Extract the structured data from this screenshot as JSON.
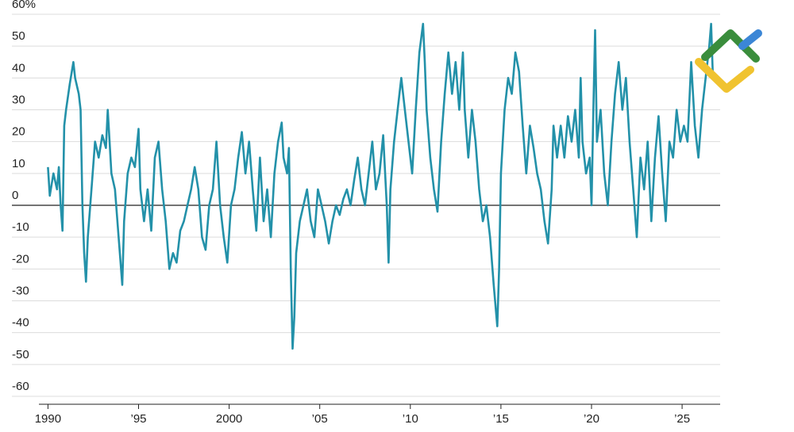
{
  "chart_data": {
    "type": "line",
    "x": [
      1990.0,
      1990.1,
      1990.3,
      1990.5,
      1990.6,
      1990.7,
      1990.8,
      1990.9,
      1991.0,
      1991.2,
      1991.4,
      1991.5,
      1991.7,
      1991.8,
      1991.9,
      1992.0,
      1992.1,
      1992.2,
      1992.4,
      1992.6,
      1992.8,
      1993.0,
      1993.2,
      1993.3,
      1993.5,
      1993.7,
      1993.9,
      1994.1,
      1994.2,
      1994.4,
      1994.6,
      1994.8,
      1995.0,
      1995.1,
      1995.3,
      1995.5,
      1995.7,
      1995.9,
      1996.1,
      1996.3,
      1996.5,
      1996.7,
      1996.9,
      1997.1,
      1997.3,
      1997.5,
      1997.7,
      1997.9,
      1998.1,
      1998.3,
      1998.5,
      1998.7,
      1998.9,
      1999.1,
      1999.3,
      1999.5,
      1999.7,
      1999.9,
      2000.1,
      2000.3,
      2000.5,
      2000.7,
      2000.9,
      2001.1,
      2001.3,
      2001.5,
      2001.7,
      2001.9,
      2002.1,
      2002.3,
      2002.5,
      2002.7,
      2002.9,
      2003.0,
      2003.2,
      2003.3,
      2003.4,
      2003.5,
      2003.6,
      2003.7,
      2003.9,
      2004.1,
      2004.3,
      2004.5,
      2004.7,
      2004.9,
      2005.1,
      2005.3,
      2005.5,
      2005.7,
      2005.9,
      2006.1,
      2006.3,
      2006.5,
      2006.7,
      2006.9,
      2007.1,
      2007.3,
      2007.5,
      2007.7,
      2007.9,
      2008.1,
      2008.3,
      2008.5,
      2008.7,
      2008.8,
      2008.9,
      2009.1,
      2009.3,
      2009.5,
      2009.7,
      2009.9,
      2010.1,
      2010.3,
      2010.5,
      2010.7,
      2010.8,
      2010.9,
      2011.1,
      2011.3,
      2011.5,
      2011.7,
      2011.9,
      2012.1,
      2012.3,
      2012.5,
      2012.7,
      2012.9,
      2013.0,
      2013.2,
      2013.4,
      2013.6,
      2013.8,
      2014.0,
      2014.2,
      2014.4,
      2014.6,
      2014.8,
      2014.9,
      2015.0,
      2015.2,
      2015.4,
      2015.6,
      2015.8,
      2016.0,
      2016.2,
      2016.4,
      2016.6,
      2016.8,
      2017.0,
      2017.2,
      2017.4,
      2017.6,
      2017.8,
      2017.9,
      2018.1,
      2018.3,
      2018.5,
      2018.7,
      2018.9,
      2019.1,
      2019.3,
      2019.4,
      2019.5,
      2019.7,
      2019.9,
      2020.0,
      2020.1,
      2020.2,
      2020.3,
      2020.5,
      2020.7,
      2020.9,
      2021.1,
      2021.3,
      2021.5,
      2021.7,
      2021.9,
      2022.1,
      2022.3,
      2022.5,
      2022.7,
      2022.9,
      2023.1,
      2023.3,
      2023.5,
      2023.7,
      2023.9,
      2024.1,
      2024.3,
      2024.5,
      2024.7,
      2024.9,
      2025.1,
      2025.3,
      2025.5,
      2025.7,
      2025.9,
      2026.1,
      2026.3,
      2026.5,
      2026.6,
      2026.7
    ],
    "series": [
      {
        "color": "#2391a9",
        "values": [
          12,
          3,
          10,
          5,
          12,
          0,
          -8,
          25,
          30,
          38,
          45,
          40,
          35,
          30,
          0,
          -15,
          -24,
          -10,
          5,
          20,
          15,
          22,
          18,
          30,
          10,
          5,
          -10,
          -25,
          -5,
          10,
          15,
          12,
          24,
          5,
          -5,
          5,
          -8,
          15,
          20,
          5,
          -5,
          -20,
          -15,
          -18,
          -8,
          -5,
          0,
          5,
          12,
          5,
          -10,
          -14,
          0,
          5,
          20,
          0,
          -10,
          -18,
          0,
          5,
          15,
          23,
          10,
          20,
          5,
          -8,
          15,
          -5,
          5,
          -10,
          10,
          20,
          26,
          15,
          10,
          18,
          -20,
          -45,
          -35,
          -15,
          -5,
          0,
          5,
          -5,
          -10,
          5,
          0,
          -5,
          -12,
          -5,
          0,
          -3,
          2,
          5,
          0,
          8,
          15,
          5,
          0,
          10,
          20,
          5,
          10,
          22,
          0,
          -18,
          5,
          20,
          30,
          40,
          30,
          20,
          10,
          30,
          48,
          57,
          45,
          30,
          15,
          5,
          -2,
          20,
          35,
          48,
          35,
          45,
          30,
          48,
          30,
          15,
          30,
          20,
          5,
          -5,
          0,
          -10,
          -25,
          -38,
          -20,
          10,
          30,
          40,
          35,
          48,
          42,
          25,
          10,
          25,
          18,
          10,
          5,
          -5,
          -12,
          5,
          25,
          15,
          25,
          15,
          28,
          20,
          30,
          15,
          40,
          20,
          10,
          15,
          0,
          30,
          55,
          20,
          30,
          10,
          0,
          20,
          35,
          45,
          30,
          40,
          20,
          5,
          -10,
          15,
          5,
          20,
          -5,
          15,
          28,
          10,
          -5,
          20,
          15,
          30,
          20,
          25,
          20,
          45,
          25,
          15,
          30,
          40,
          50,
          57,
          40
        ]
      }
    ],
    "xlim": [
      1989.5,
      2027.1
    ],
    "ylim": [
      -60,
      60
    ],
    "xticks": [
      1990,
      {
        "value": 1995,
        "label": "’95"
      },
      2000,
      {
        "value": 2005,
        "label": "’05"
      },
      {
        "value": 2010,
        "label": "’10"
      },
      {
        "value": 2015,
        "label": "’15"
      },
      {
        "value": 2020,
        "label": "’20"
      },
      {
        "value": 2025,
        "label": "’25"
      }
    ],
    "yticks": [
      {
        "value": 60,
        "label": "60%"
      },
      50,
      40,
      30,
      20,
      10,
      0,
      -10,
      -20,
      -30,
      -40,
      -50,
      -60
    ],
    "grid": true
  }
}
